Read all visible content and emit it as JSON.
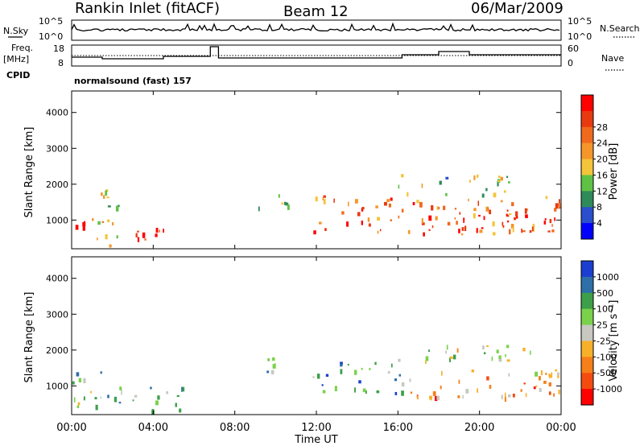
{
  "header": {
    "station": "Rankin Inlet (fitACF)",
    "beam": "Beam 12",
    "date": "06/Mar/2009"
  },
  "noise_panel": {
    "left_label": "N.Sky",
    "left_ticks": [
      "10^5",
      "10^0"
    ],
    "right_ticks": [
      "10^5",
      "10^0"
    ],
    "right_label": "N.Search",
    "right_legend_line": "dotted"
  },
  "freq_panel": {
    "left_label_line1": "Freq.",
    "left_label_line2": "[MHz]",
    "left_ticks": [
      "18",
      "8"
    ],
    "right_ticks": [
      "60",
      "0"
    ],
    "right_label": "Nave",
    "right_legend_line": "dotted"
  },
  "cpid": {
    "label": "CPID",
    "program": "normalsound (fast) 157"
  },
  "x_axis": {
    "title": "Time UT",
    "ticks": [
      "00:00",
      "04:00",
      "08:00",
      "12:00",
      "16:00",
      "20:00",
      "00:00"
    ]
  },
  "colors": {
    "power": [
      "#0000ff",
      "#2a4fcc",
      "#2f8a5a",
      "#5fc245",
      "#f4c43a",
      "#f5962a",
      "#f06a1e",
      "#e83a10",
      "#ff0000"
    ],
    "velocity": [
      "#ff0000",
      "#f44c10",
      "#f57f19",
      "#f7b02a",
      "#c8c8c0",
      "#7ad24a",
      "#3e9f4a",
      "#2e6fa8",
      "#1a3fd0"
    ]
  },
  "chart_data": [
    {
      "type": "heatmap",
      "title": "Power",
      "ylabel": "Slant Range [km]",
      "xlabel": "",
      "x_range": [
        0,
        24
      ],
      "ylim": [
        200,
        4600
      ],
      "y_ticks": [
        "1000",
        "2000",
        "3000",
        "4000"
      ],
      "colorbar": {
        "label": "Power [dB]",
        "ticks": [
          "4",
          "8",
          "12",
          "16",
          "20",
          "24",
          "28"
        ]
      },
      "regions": [
        {
          "t0": 0.0,
          "t1": 0.8,
          "r0": 700,
          "r1": 1500,
          "level": 8
        },
        {
          "t0": 0.8,
          "t1": 2.5,
          "r0": 300,
          "r1": 1900,
          "level": 4
        },
        {
          "t0": 2.5,
          "t1": 5.5,
          "r0": 300,
          "r1": 800,
          "level": 7
        },
        {
          "t0": 9.0,
          "t1": 10.6,
          "r0": 1300,
          "r1": 1900,
          "level": 4
        },
        {
          "t0": 11.8,
          "t1": 24.0,
          "r0": 600,
          "r1": 1700,
          "level": 6
        },
        {
          "t0": 16.0,
          "t1": 21.5,
          "r0": 1700,
          "r1": 2300,
          "level": 3
        },
        {
          "t0": 18.6,
          "t1": 24.0,
          "r0": 700,
          "r1": 1400,
          "level": 8
        }
      ]
    },
    {
      "type": "heatmap",
      "title": "Velocity",
      "ylabel": "Slant Range [km]",
      "xlabel": "Time UT",
      "x_range": [
        0,
        24
      ],
      "ylim": [
        200,
        4600
      ],
      "y_ticks": [
        "1000",
        "2000",
        "3000",
        "4000"
      ],
      "colorbar": {
        "label": "Velocity [m s⁻¹]",
        "ticks": [
          "1000",
          "500",
          "100",
          "25",
          "-25",
          "-100",
          "-500",
          "-1000"
        ]
      },
      "regions": [
        {
          "t0": 0.0,
          "t1": 1.5,
          "r0": 300,
          "r1": 1700,
          "level": 5
        },
        {
          "t0": 1.5,
          "t1": 5.5,
          "r0": 300,
          "r1": 1000,
          "level": 6
        },
        {
          "t0": 9.0,
          "t1": 10.6,
          "r0": 1300,
          "r1": 1900,
          "level": 5
        },
        {
          "t0": 11.8,
          "t1": 16.5,
          "r0": 800,
          "r1": 1700,
          "level": 6
        },
        {
          "t0": 16.5,
          "t1": 24.0,
          "r0": 700,
          "r1": 1500,
          "level": 2
        },
        {
          "t0": 15.5,
          "t1": 22.5,
          "r0": 1700,
          "r1": 2200,
          "level": 4
        },
        {
          "t0": 22.0,
          "t1": 24.0,
          "r0": 900,
          "r1": 1500,
          "level": 3
        }
      ]
    }
  ]
}
